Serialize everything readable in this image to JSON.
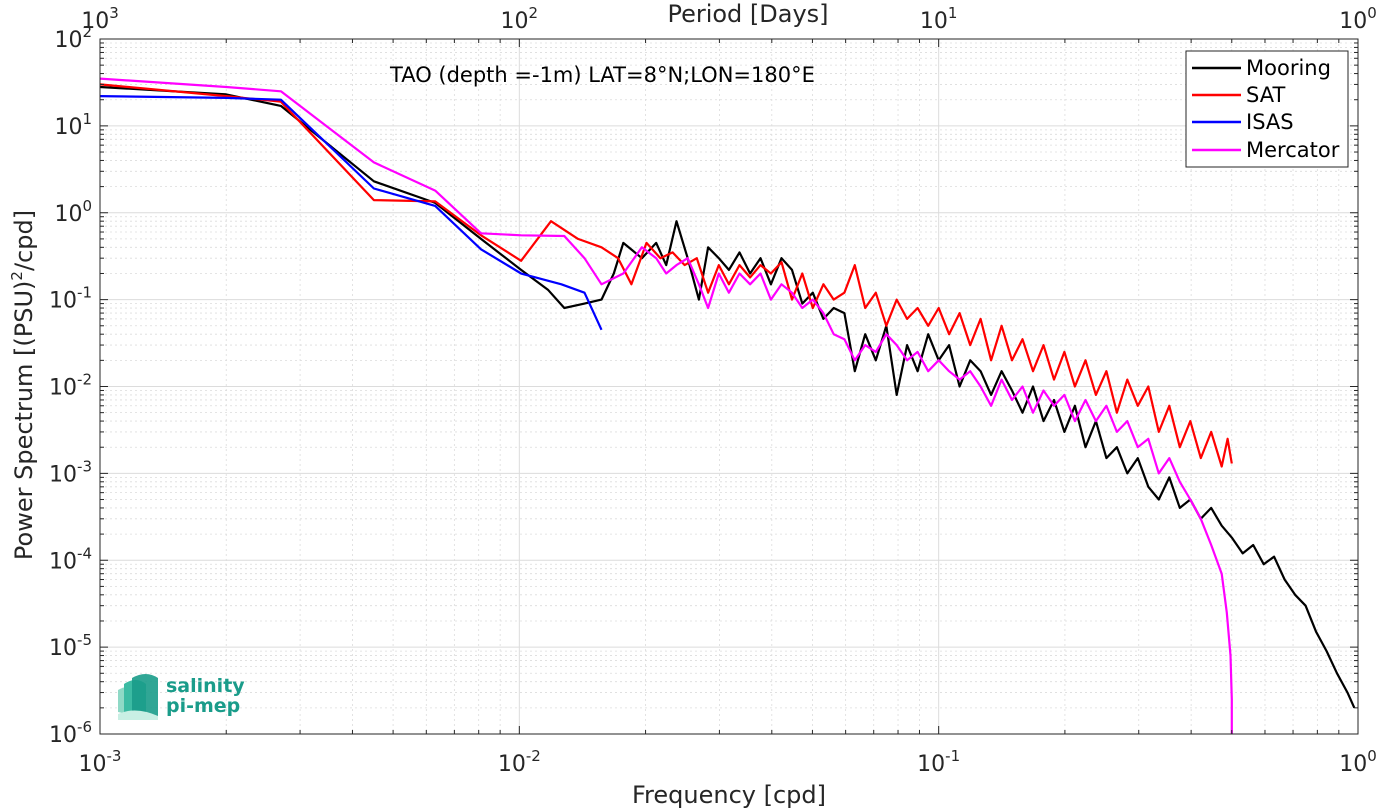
{
  "chart_data": {
    "type": "line",
    "title": "TAO (depth =-1m) LAT=8°N;LON=180°E",
    "xlabel": "Frequency [cpd]",
    "ylabel": "Power Spectrum [(PSU)²/cpd]",
    "ylabel_main": "Power Spectrum [(PSU)",
    "ylabel_sup": "2",
    "ylabel_tail": "/cpd]",
    "x2label": "Period [Days]",
    "xscale": "log",
    "yscale": "log",
    "xlim": [
      0.001,
      1
    ],
    "ylim": [
      1e-06,
      100
    ],
    "grid": true,
    "legend_position": "top-right",
    "x_ticks": [
      {
        "value": 0.001,
        "base": "10",
        "exp": "-3"
      },
      {
        "value": 0.01,
        "base": "10",
        "exp": "-2"
      },
      {
        "value": 0.1,
        "base": "10",
        "exp": "-1"
      },
      {
        "value": 1,
        "base": "10",
        "exp": "0"
      }
    ],
    "x2_ticks": [
      {
        "period": 1000,
        "base": "10",
        "exp": "3"
      },
      {
        "period": 100,
        "base": "10",
        "exp": "2"
      },
      {
        "period": 10,
        "base": "10",
        "exp": "1"
      },
      {
        "period": 1,
        "base": "10",
        "exp": "0"
      }
    ],
    "y_ticks": [
      {
        "value": 100,
        "base": "10",
        "exp": "2"
      },
      {
        "value": 10,
        "base": "10",
        "exp": "1"
      },
      {
        "value": 1,
        "base": "10",
        "exp": "0"
      },
      {
        "value": 0.1,
        "base": "10",
        "exp": "-1"
      },
      {
        "value": 0.01,
        "base": "10",
        "exp": "-2"
      },
      {
        "value": 0.001,
        "base": "10",
        "exp": "-3"
      },
      {
        "value": 0.0001,
        "base": "10",
        "exp": "-4"
      },
      {
        "value": 1e-05,
        "base": "10",
        "exp": "-5"
      },
      {
        "value": 1e-06,
        "base": "10",
        "exp": "-6"
      }
    ],
    "series": [
      {
        "name": "Mooring",
        "color": "#000000",
        "points": [
          [
            0.001,
            28
          ],
          [
            0.002,
            23
          ],
          [
            0.0027,
            17
          ],
          [
            0.0045,
            2.3
          ],
          [
            0.0063,
            1.3
          ],
          [
            0.0081,
            0.5
          ],
          [
            0.0101,
            0.22
          ],
          [
            0.0117,
            0.13
          ],
          [
            0.0128,
            0.08
          ],
          [
            0.0143,
            0.09
          ],
          [
            0.0157,
            0.1
          ],
          [
            0.0168,
            0.2
          ],
          [
            0.0177,
            0.45
          ],
          [
            0.0196,
            0.3
          ],
          [
            0.0212,
            0.45
          ],
          [
            0.0224,
            0.25
          ],
          [
            0.0237,
            0.8
          ],
          [
            0.0252,
            0.3
          ],
          [
            0.0268,
            0.1
          ],
          [
            0.0282,
            0.4
          ],
          [
            0.0299,
            0.3
          ],
          [
            0.0316,
            0.22
          ],
          [
            0.0335,
            0.35
          ],
          [
            0.0355,
            0.2
          ],
          [
            0.0376,
            0.3
          ],
          [
            0.0398,
            0.15
          ],
          [
            0.0422,
            0.3
          ],
          [
            0.0447,
            0.22
          ],
          [
            0.0473,
            0.09
          ],
          [
            0.0501,
            0.12
          ],
          [
            0.0531,
            0.06
          ],
          [
            0.0562,
            0.08
          ],
          [
            0.0596,
            0.07
          ],
          [
            0.0631,
            0.015
          ],
          [
            0.0668,
            0.04
          ],
          [
            0.0708,
            0.02
          ],
          [
            0.075,
            0.05
          ],
          [
            0.0794,
            0.008
          ],
          [
            0.0841,
            0.03
          ],
          [
            0.0891,
            0.015
          ],
          [
            0.0944,
            0.04
          ],
          [
            0.1,
            0.02
          ],
          [
            0.1059,
            0.03
          ],
          [
            0.1122,
            0.01
          ],
          [
            0.1189,
            0.02
          ],
          [
            0.1259,
            0.015
          ],
          [
            0.1334,
            0.008
          ],
          [
            0.1413,
            0.015
          ],
          [
            0.1496,
            0.009
          ],
          [
            0.1585,
            0.005
          ],
          [
            0.1679,
            0.01
          ],
          [
            0.1778,
            0.004
          ],
          [
            0.1884,
            0.007
          ],
          [
            0.1995,
            0.003
          ],
          [
            0.2113,
            0.006
          ],
          [
            0.2239,
            0.002
          ],
          [
            0.2371,
            0.004
          ],
          [
            0.2512,
            0.0015
          ],
          [
            0.2661,
            0.002
          ],
          [
            0.2818,
            0.001
          ],
          [
            0.2985,
            0.0015
          ],
          [
            0.3162,
            0.0007
          ],
          [
            0.335,
            0.0005
          ],
          [
            0.3548,
            0.0009
          ],
          [
            0.3758,
            0.0004
          ],
          [
            0.3981,
            0.0005
          ],
          [
            0.4217,
            0.0003
          ],
          [
            0.4467,
            0.0004
          ],
          [
            0.4732,
            0.00025
          ],
          [
            0.5012,
            0.00018
          ],
          [
            0.5309,
            0.00012
          ],
          [
            0.5623,
            0.00015
          ],
          [
            0.5957,
            9e-05
          ],
          [
            0.631,
            0.00011
          ],
          [
            0.6683,
            6e-05
          ],
          [
            0.7079,
            4e-05
          ],
          [
            0.7499,
            3e-05
          ],
          [
            0.7943,
            1.5e-05
          ],
          [
            0.8414,
            9e-06
          ],
          [
            0.8913,
            5e-06
          ],
          [
            0.9441,
            3e-06
          ],
          [
            0.98,
            2e-06
          ]
        ]
      },
      {
        "name": "SAT",
        "color": "#ff0000",
        "points": [
          [
            0.001,
            30
          ],
          [
            0.002,
            22
          ],
          [
            0.0027,
            19
          ],
          [
            0.0045,
            1.4
          ],
          [
            0.0063,
            1.35
          ],
          [
            0.0081,
            0.55
          ],
          [
            0.0101,
            0.28
          ],
          [
            0.0119,
            0.8
          ],
          [
            0.0138,
            0.5
          ],
          [
            0.0157,
            0.4
          ],
          [
            0.0172,
            0.3
          ],
          [
            0.0185,
            0.15
          ],
          [
            0.0201,
            0.45
          ],
          [
            0.0217,
            0.3
          ],
          [
            0.0232,
            0.35
          ],
          [
            0.0248,
            0.25
          ],
          [
            0.0265,
            0.3
          ],
          [
            0.0282,
            0.12
          ],
          [
            0.0299,
            0.25
          ],
          [
            0.0316,
            0.15
          ],
          [
            0.0335,
            0.25
          ],
          [
            0.0355,
            0.18
          ],
          [
            0.0376,
            0.25
          ],
          [
            0.0398,
            0.2
          ],
          [
            0.0422,
            0.27
          ],
          [
            0.0447,
            0.1
          ],
          [
            0.0473,
            0.2
          ],
          [
            0.0501,
            0.08
          ],
          [
            0.0531,
            0.15
          ],
          [
            0.0562,
            0.1
          ],
          [
            0.0596,
            0.12
          ],
          [
            0.0631,
            0.25
          ],
          [
            0.0668,
            0.08
          ],
          [
            0.0708,
            0.12
          ],
          [
            0.075,
            0.05
          ],
          [
            0.0794,
            0.1
          ],
          [
            0.0841,
            0.06
          ],
          [
            0.0891,
            0.08
          ],
          [
            0.0944,
            0.05
          ],
          [
            0.1,
            0.08
          ],
          [
            0.1059,
            0.04
          ],
          [
            0.1122,
            0.07
          ],
          [
            0.1189,
            0.03
          ],
          [
            0.1259,
            0.06
          ],
          [
            0.1334,
            0.02
          ],
          [
            0.1413,
            0.05
          ],
          [
            0.1496,
            0.02
          ],
          [
            0.1585,
            0.035
          ],
          [
            0.1679,
            0.015
          ],
          [
            0.1778,
            0.03
          ],
          [
            0.1884,
            0.012
          ],
          [
            0.1995,
            0.025
          ],
          [
            0.2113,
            0.01
          ],
          [
            0.2239,
            0.02
          ],
          [
            0.2371,
            0.008
          ],
          [
            0.2512,
            0.015
          ],
          [
            0.2661,
            0.005
          ],
          [
            0.2818,
            0.012
          ],
          [
            0.2985,
            0.006
          ],
          [
            0.3162,
            0.01
          ],
          [
            0.335,
            0.003
          ],
          [
            0.3548,
            0.006
          ],
          [
            0.3758,
            0.002
          ],
          [
            0.3981,
            0.004
          ],
          [
            0.4217,
            0.0015
          ],
          [
            0.4467,
            0.003
          ],
          [
            0.4732,
            0.0012
          ],
          [
            0.4886,
            0.0025
          ],
          [
            0.5,
            0.0013
          ]
        ]
      },
      {
        "name": "ISAS",
        "color": "#0000ff",
        "points": [
          [
            0.001,
            22
          ],
          [
            0.002,
            21
          ],
          [
            0.0027,
            20
          ],
          [
            0.0045,
            1.9
          ],
          [
            0.0063,
            1.2
          ],
          [
            0.0081,
            0.38
          ],
          [
            0.0101,
            0.2
          ],
          [
            0.0126,
            0.15
          ],
          [
            0.0143,
            0.12
          ],
          [
            0.0157,
            0.045
          ]
        ]
      },
      {
        "name": "Mercator",
        "color": "#ff00ff",
        "points": [
          [
            0.001,
            35
          ],
          [
            0.002,
            28
          ],
          [
            0.0027,
            25
          ],
          [
            0.0045,
            3.8
          ],
          [
            0.0063,
            1.8
          ],
          [
            0.0081,
            0.58
          ],
          [
            0.0101,
            0.55
          ],
          [
            0.0128,
            0.54
          ],
          [
            0.0143,
            0.3
          ],
          [
            0.0157,
            0.15
          ],
          [
            0.0177,
            0.2
          ],
          [
            0.0196,
            0.4
          ],
          [
            0.0212,
            0.3
          ],
          [
            0.0224,
            0.2
          ],
          [
            0.0237,
            0.25
          ],
          [
            0.0252,
            0.3
          ],
          [
            0.0268,
            0.15
          ],
          [
            0.0282,
            0.08
          ],
          [
            0.0299,
            0.2
          ],
          [
            0.0316,
            0.12
          ],
          [
            0.0335,
            0.2
          ],
          [
            0.0355,
            0.15
          ],
          [
            0.0376,
            0.2
          ],
          [
            0.0398,
            0.1
          ],
          [
            0.0422,
            0.15
          ],
          [
            0.0447,
            0.12
          ],
          [
            0.0473,
            0.08
          ],
          [
            0.0501,
            0.1
          ],
          [
            0.0531,
            0.07
          ],
          [
            0.0562,
            0.04
          ],
          [
            0.0596,
            0.035
          ],
          [
            0.0631,
            0.02
          ],
          [
            0.0668,
            0.03
          ],
          [
            0.0708,
            0.025
          ],
          [
            0.075,
            0.04
          ],
          [
            0.0794,
            0.03
          ],
          [
            0.0841,
            0.02
          ],
          [
            0.0891,
            0.025
          ],
          [
            0.0944,
            0.015
          ],
          [
            0.1,
            0.02
          ],
          [
            0.1059,
            0.015
          ],
          [
            0.1122,
            0.012
          ],
          [
            0.1189,
            0.015
          ],
          [
            0.1259,
            0.01
          ],
          [
            0.1334,
            0.006
          ],
          [
            0.1413,
            0.012
          ],
          [
            0.1496,
            0.007
          ],
          [
            0.1585,
            0.01
          ],
          [
            0.1679,
            0.005
          ],
          [
            0.1778,
            0.009
          ],
          [
            0.1884,
            0.006
          ],
          [
            0.1995,
            0.008
          ],
          [
            0.2113,
            0.004
          ],
          [
            0.2239,
            0.007
          ],
          [
            0.2371,
            0.004
          ],
          [
            0.2512,
            0.006
          ],
          [
            0.2661,
            0.003
          ],
          [
            0.2818,
            0.004
          ],
          [
            0.2985,
            0.002
          ],
          [
            0.3162,
            0.0025
          ],
          [
            0.335,
            0.001
          ],
          [
            0.3548,
            0.0015
          ],
          [
            0.3758,
            0.0008
          ],
          [
            0.3981,
            0.0005
          ],
          [
            0.4217,
            0.0003
          ],
          [
            0.4467,
            0.00015
          ],
          [
            0.4732,
            7e-05
          ],
          [
            0.4866,
            2.5e-05
          ],
          [
            0.4966,
            8e-06
          ],
          [
            0.5,
            2.5e-06
          ],
          [
            0.5,
            1e-06
          ]
        ]
      }
    ]
  },
  "logo": {
    "line1": "salinity",
    "line2": "pi-mep"
  },
  "colors": {
    "axis": "#262626",
    "grid": "#dcdcdc",
    "logo": "#1a9c8a"
  }
}
